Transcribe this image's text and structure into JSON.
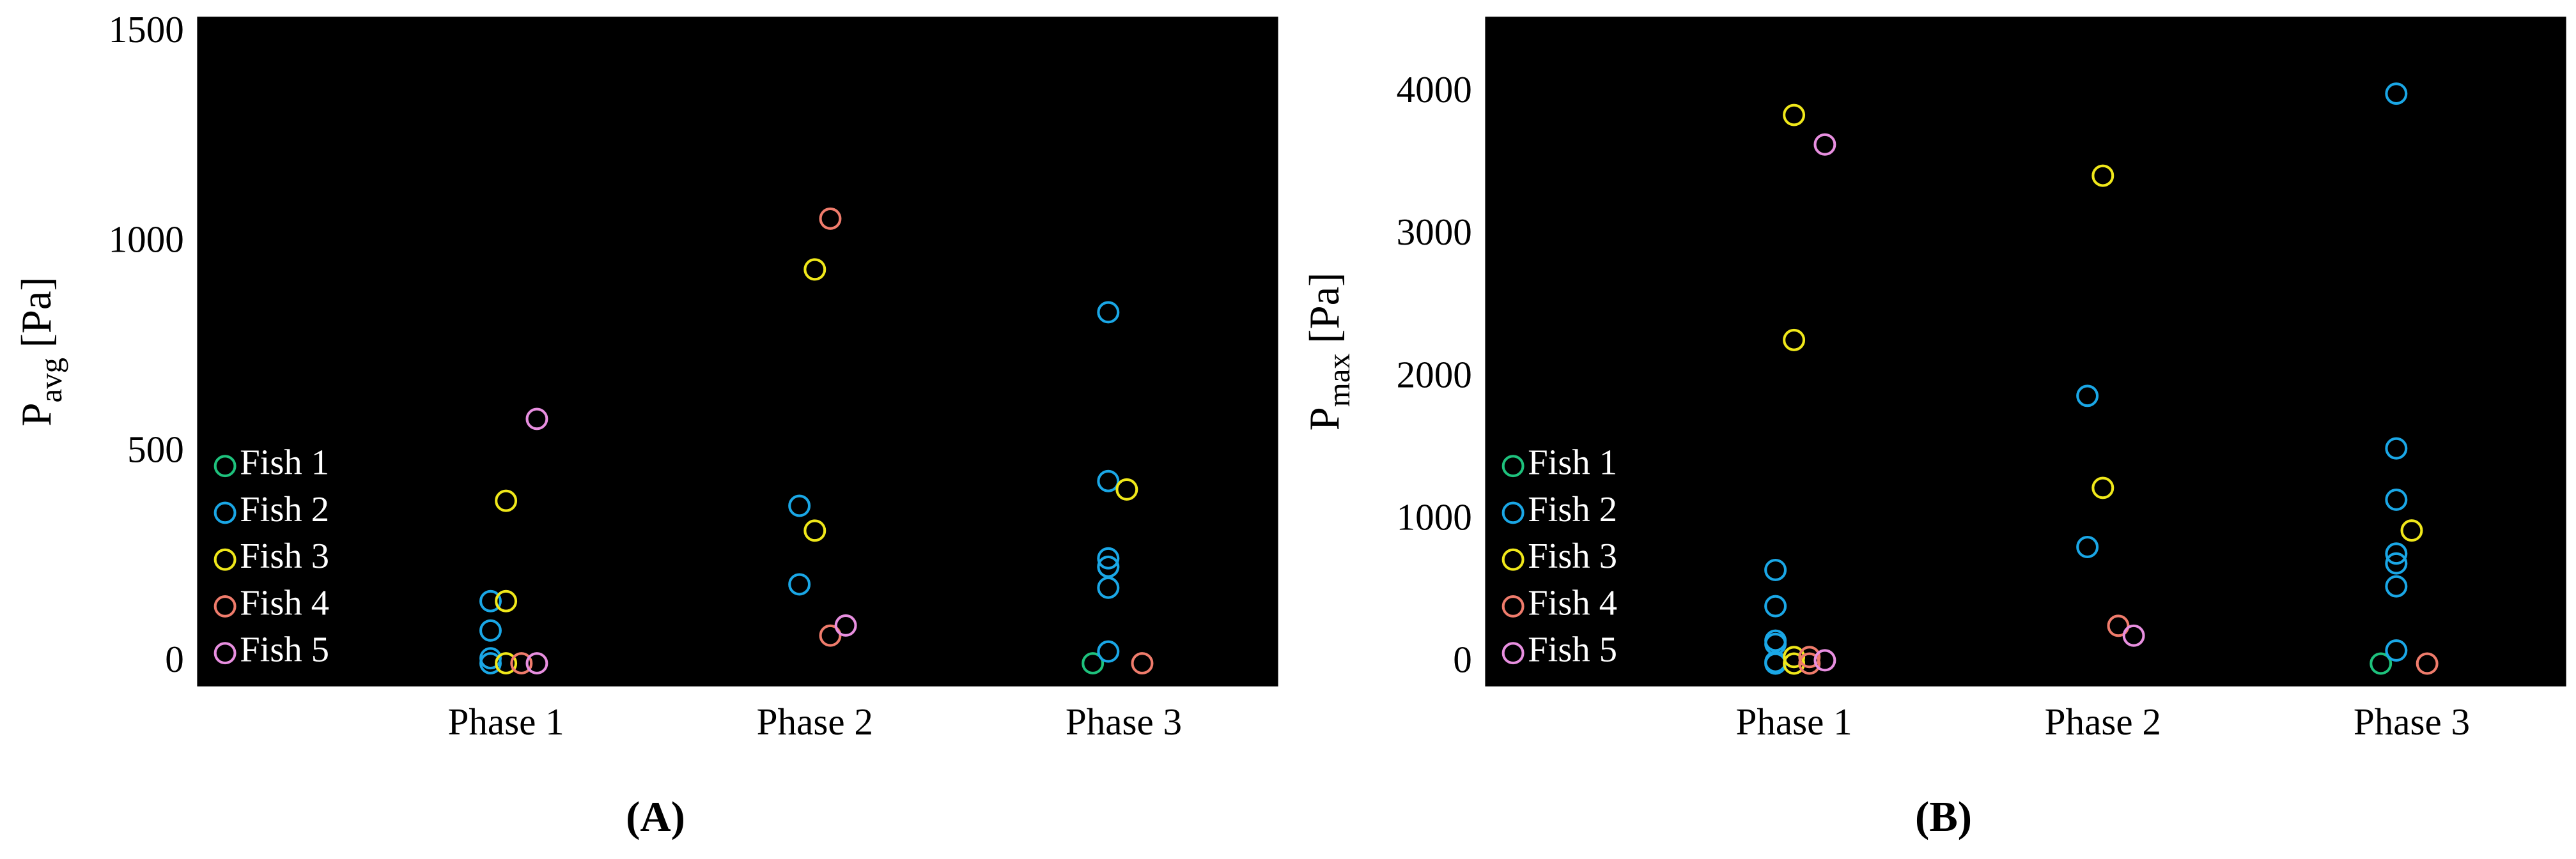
{
  "chart_data": [
    {
      "type": "scatter",
      "ylabel": "P",
      "ylabel_sub": "avg",
      "ylabel_unit": "[Pa]",
      "panel_label": "(A)",
      "xlim": [
        0,
        3.5
      ],
      "xticks": [
        {
          "value": 1,
          "label": "Phase 1"
        },
        {
          "value": 2,
          "label": "Phase 2"
        },
        {
          "value": 3,
          "label": "Phase 3"
        }
      ],
      "ylim": [
        -55,
        1540
      ],
      "yticks": [
        0,
        500,
        1000,
        1500
      ],
      "grid": false,
      "legend": "lower left",
      "series": [
        {
          "name": "Fish 1",
          "color": "#1ec27d",
          "x": [
            2.9
          ],
          "values": [
            0
          ]
        },
        {
          "name": "Fish 2",
          "color": "#1aa7e6",
          "x": [
            0.95,
            0.95,
            0.95,
            0.95,
            1.95,
            1.95,
            2.95,
            2.95,
            2.95,
            2.95,
            2.95,
            2.95
          ],
          "values": [
            148,
            78,
            12,
            0,
            375,
            188,
            836,
            434,
            250,
            230,
            180,
            28
          ]
        },
        {
          "name": "Fish 3",
          "color": "#f0e81a",
          "x": [
            1.0,
            1.0,
            1.0,
            2.0,
            2.0,
            3.01
          ],
          "values": [
            387,
            148,
            0,
            938,
            316,
            414
          ]
        },
        {
          "name": "Fish 4",
          "color": "#f07c6c",
          "x": [
            1.05,
            2.05,
            2.05,
            3.06
          ],
          "values": [
            0,
            1059,
            66,
            0
          ]
        },
        {
          "name": "Fish 5",
          "color": "#e88fe0",
          "x": [
            1.1,
            1.1,
            2.1
          ],
          "values": [
            582,
            0,
            90
          ]
        }
      ]
    },
    {
      "type": "scatter",
      "ylabel": "P",
      "ylabel_sub": "max",
      "ylabel_unit": "[Pa]",
      "panel_label": "(B)",
      "xlim": [
        0,
        3.5
      ],
      "xticks": [
        {
          "value": 1,
          "label": "Phase 1"
        },
        {
          "value": 2,
          "label": "Phase 2"
        },
        {
          "value": 3,
          "label": "Phase 3"
        }
      ],
      "ylim": [
        -160,
        4540
      ],
      "yticks": [
        0,
        1000,
        2000,
        3000,
        4000
      ],
      "grid": false,
      "legend": "lower left",
      "series": [
        {
          "name": "Fish 1",
          "color": "#1ec27d",
          "x": [
            2.9
          ],
          "values": [
            0
          ]
        },
        {
          "name": "Fish 2",
          "color": "#1aa7e6",
          "x": [
            0.94,
            0.94,
            0.94,
            0.94,
            0.94,
            0.94,
            1.95,
            1.95,
            2.95,
            2.95,
            2.95,
            2.95,
            2.95,
            2.95,
            2.95
          ],
          "values": [
            657,
            403,
            161,
            138,
            12,
            0,
            1879,
            818,
            4000,
            1510,
            1150,
            772,
            703,
            542,
            92
          ]
        },
        {
          "name": "Fish 3",
          "color": "#f0e81a",
          "x": [
            1.0,
            1.0,
            1.0,
            1.0,
            2.0,
            2.0,
            3.0
          ],
          "values": [
            3850,
            2271,
            46,
            0,
            3424,
            1233,
            934
          ]
        },
        {
          "name": "Fish 4",
          "color": "#f07c6c",
          "x": [
            1.05,
            1.05,
            2.05,
            3.05
          ],
          "values": [
            0,
            46,
            265,
            0
          ]
        },
        {
          "name": "Fish 5",
          "color": "#e88fe0",
          "x": [
            1.1,
            1.1,
            2.1
          ],
          "values": [
            3643,
            23,
            196
          ]
        }
      ]
    }
  ]
}
